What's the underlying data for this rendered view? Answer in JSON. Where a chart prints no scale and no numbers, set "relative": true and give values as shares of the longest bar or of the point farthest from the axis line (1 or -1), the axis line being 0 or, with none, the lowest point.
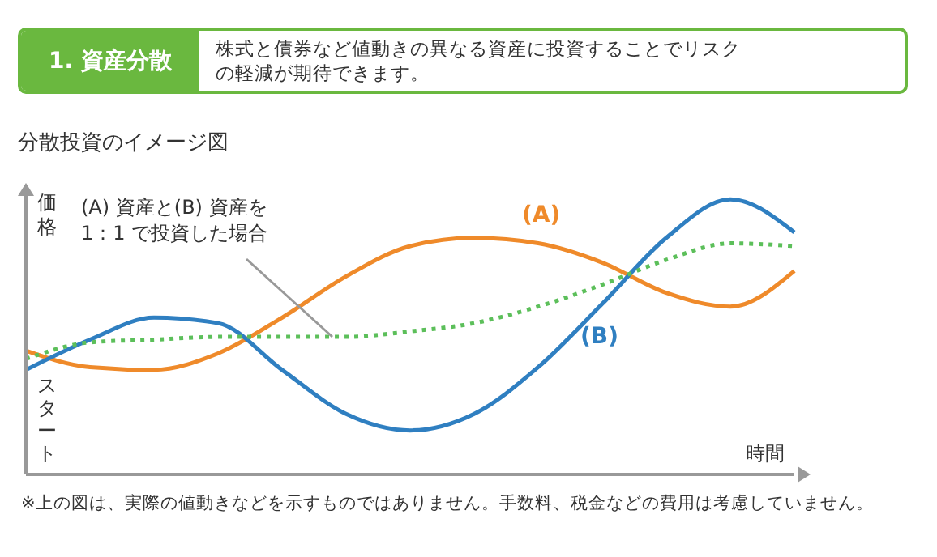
{
  "chart_data": {
    "type": "line",
    "relative": true,
    "title": "分散投資のイメージ図",
    "xlabel": "時間",
    "ylabel": "価格",
    "categories": [
      null,
      null,
      null,
      null,
      null,
      null,
      null,
      null,
      null,
      null,
      null,
      null,
      null
    ],
    "series": [
      {
        "name": "(A)",
        "color": "#ef8a2a",
        "line_style": "solid",
        "values": [
          0.45,
          0.39,
          0.38,
          0.44,
          0.57,
          0.72,
          0.83,
          0.86,
          0.84,
          0.77,
          0.66,
          0.61,
          0.74
        ]
      },
      {
        "name": "(B)",
        "color": "#2f7fc1",
        "line_style": "solid",
        "values": [
          0.38,
          0.49,
          0.57,
          0.55,
          0.38,
          0.22,
          0.16,
          0.22,
          0.39,
          0.62,
          0.86,
          1.0,
          0.88
        ]
      },
      {
        "color": "#5cbf5a",
        "line_style": "dotted",
        "values": [
          0.42,
          0.48,
          0.49,
          0.5,
          0.5,
          0.5,
          0.52,
          0.55,
          0.61,
          0.69,
          0.78,
          0.84,
          0.83
        ]
      }
    ],
    "annotations": [
      "1. 資産分散",
      "株式と債券など値動きの異なる資産に投資することでリスクの軽減が期待できます。",
      "スタート",
      "※上の図は、実際の値動きなどを示すものではありません。手数料、税金などの費用は考慮していません。",
      "(A) 資産と(B) 資産を 1：1 で投資した場合"
    ],
    "marker": "none"
  }
}
